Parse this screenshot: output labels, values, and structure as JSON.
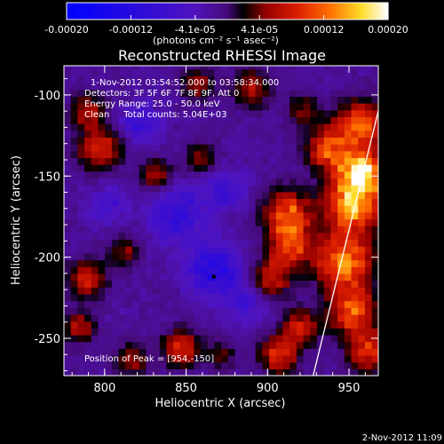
{
  "chart_data": {
    "type": "heatmap",
    "title": "Reconstructed RHESSI Image",
    "colorbar": {
      "tick_labels": [
        "-0.00020",
        "-0.00012",
        "-4.1e-05",
        "4.1e-05",
        "0.00012",
        "0.00020"
      ],
      "units_label": "(photons cm⁻² s⁻¹ asec⁻²)",
      "range": [
        -0.0002,
        0.0002
      ]
    },
    "xlabel": "Heliocentric X (arcsec)",
    "ylabel": "Heliocentric Y (arcsec)",
    "xlim": [
      775,
      968
    ],
    "ylim": [
      -273,
      -82
    ],
    "x_ticks": [
      800,
      850,
      900,
      950
    ],
    "x_tick_labels": [
      "800",
      "850",
      "900",
      "950"
    ],
    "y_ticks": [
      -100,
      -150,
      -200,
      -250
    ],
    "y_tick_labels": [
      "-100",
      "-150",
      "-200",
      "-250"
    ],
    "annotations": {
      "time_range": "1-Nov-2012 03:54:52.000 to 03:58:34.000",
      "detectors": "Detectors: 3F 5F 6F 7F 8F 9F, Att 0",
      "energy_range": "Energy Range: 25.0 - 50.0 keV",
      "method": "Clean     Total counts: 5.04E+03",
      "peak": "Position of Peak = [954,-150]"
    },
    "peak_position": [
      954,
      -150
    ],
    "limb_line": [
      [
        928,
        -273
      ],
      [
        968,
        -110
      ]
    ],
    "emission_regions": [
      {
        "x": 955,
        "y": -150,
        "level": 0.00019,
        "r": 10
      },
      {
        "x": 950,
        "y": -170,
        "level": 0.00016,
        "r": 12
      },
      {
        "x": 955,
        "y": -120,
        "level": 0.00014,
        "r": 10
      },
      {
        "x": 945,
        "y": -205,
        "level": 0.00015,
        "r": 12
      },
      {
        "x": 950,
        "y": -235,
        "level": 0.00013,
        "r": 10
      },
      {
        "x": 935,
        "y": -135,
        "level": 0.00012,
        "r": 9
      },
      {
        "x": 960,
        "y": -260,
        "level": 0.00011,
        "r": 9
      },
      {
        "x": 910,
        "y": -175,
        "level": 0.00013,
        "r": 10
      },
      {
        "x": 912,
        "y": -195,
        "level": 0.00012,
        "r": 9
      },
      {
        "x": 900,
        "y": -215,
        "level": 0.0001,
        "r": 8
      },
      {
        "x": 918,
        "y": -245,
        "level": 9e-05,
        "r": 8
      },
      {
        "x": 905,
        "y": -262,
        "level": 0.00011,
        "r": 8
      },
      {
        "x": 920,
        "y": -112,
        "level": 6e-05,
        "r": 7
      },
      {
        "x": 888,
        "y": -98,
        "level": 8e-05,
        "r": 8
      },
      {
        "x": 855,
        "y": -95,
        "level": 7e-05,
        "r": 7
      },
      {
        "x": 830,
        "y": -152,
        "level": 8e-05,
        "r": 7
      },
      {
        "x": 857,
        "y": -140,
        "level": 6e-05,
        "r": 7
      },
      {
        "x": 795,
        "y": -135,
        "level": 0.00011,
        "r": 9
      },
      {
        "x": 788,
        "y": -112,
        "level": 9e-05,
        "r": 7
      },
      {
        "x": 810,
        "y": -198,
        "level": 6e-05,
        "r": 7
      },
      {
        "x": 787,
        "y": -215,
        "level": 0.0001,
        "r": 8
      },
      {
        "x": 782,
        "y": -245,
        "level": 8e-05,
        "r": 7
      },
      {
        "x": 845,
        "y": -258,
        "level": 0.0001,
        "r": 8
      },
      {
        "x": 815,
        "y": -265,
        "level": 7e-05,
        "r": 7
      },
      {
        "x": 870,
        "y": -262,
        "level": 5e-05,
        "r": 6
      },
      {
        "x": 865,
        "y": -210,
        "level": -0.00011,
        "r": 11
      },
      {
        "x": 842,
        "y": -175,
        "level": -8e-05,
        "r": 12
      },
      {
        "x": 872,
        "y": -160,
        "level": -6e-05,
        "r": 9
      },
      {
        "x": 885,
        "y": -230,
        "level": -5e-05,
        "r": 9
      },
      {
        "x": 820,
        "y": -120,
        "level": -7e-05,
        "r": 8
      },
      {
        "x": 800,
        "y": -170,
        "level": -5e-05,
        "r": 8
      }
    ],
    "background_level": -1.8e-05,
    "colors": {
      "background": "#000000",
      "text": "#ffffff",
      "marker": "#000000"
    }
  },
  "footer": {
    "timestamp": "2-Nov-2012 11:09"
  }
}
